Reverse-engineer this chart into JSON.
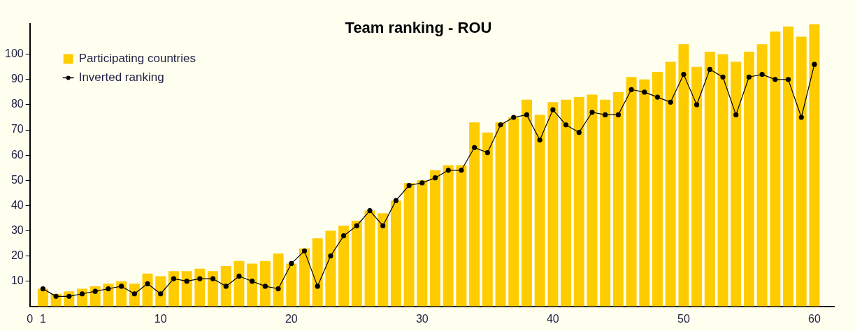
{
  "chart_data": {
    "type": "bar",
    "title": "Team ranking - ROU",
    "x": [
      1,
      2,
      3,
      4,
      5,
      6,
      7,
      8,
      9,
      10,
      11,
      12,
      13,
      14,
      15,
      16,
      17,
      18,
      19,
      20,
      21,
      22,
      23,
      24,
      25,
      26,
      27,
      28,
      29,
      30,
      31,
      32,
      33,
      34,
      35,
      36,
      37,
      38,
      39,
      40,
      41,
      42,
      43,
      44,
      45,
      46,
      47,
      48,
      49,
      50,
      51,
      52,
      53,
      54,
      55,
      56,
      57,
      58,
      59,
      60
    ],
    "series": [
      {
        "name": "Participating countries",
        "color": "#ffcc00",
        "values": [
          7,
          5,
          6,
          7,
          8,
          9,
          10,
          9,
          13,
          12,
          14,
          14,
          15,
          14,
          16,
          18,
          17,
          18,
          21,
          17,
          23,
          27,
          30,
          32,
          34,
          38,
          37,
          42,
          49,
          50,
          54,
          56,
          56,
          73,
          69,
          73,
          75,
          82,
          76,
          81,
          82,
          83,
          84,
          82,
          85,
          91,
          90,
          93,
          97,
          104,
          95,
          101,
          100,
          97,
          101,
          104,
          109,
          111,
          107,
          112
        ]
      },
      {
        "name": "Inverted ranking",
        "type": "line",
        "color": "#000000",
        "marker": "circle",
        "line_style": "solid",
        "values": [
          7,
          4,
          4,
          5,
          6,
          7,
          8,
          5,
          9,
          5,
          11,
          10,
          11,
          11,
          8,
          12,
          10,
          8,
          7,
          17,
          22,
          8,
          20,
          28,
          32,
          38,
          32,
          42,
          48,
          49,
          51,
          54,
          54,
          63,
          61,
          72,
          75,
          76,
          66,
          78,
          72,
          69,
          77,
          76,
          76,
          86,
          85,
          83,
          81,
          92,
          80,
          94,
          91,
          76,
          91,
          92,
          90,
          90,
          75,
          96
        ]
      }
    ],
    "xlim": [
      0,
      61.5
    ],
    "xticks": [
      0,
      1,
      10,
      20,
      30,
      40,
      50,
      60
    ],
    "ylim": [
      0,
      112
    ],
    "yticks": [
      10,
      20,
      30,
      40,
      50,
      60,
      70,
      80,
      90,
      100
    ],
    "grid": false,
    "legend": "top left"
  }
}
